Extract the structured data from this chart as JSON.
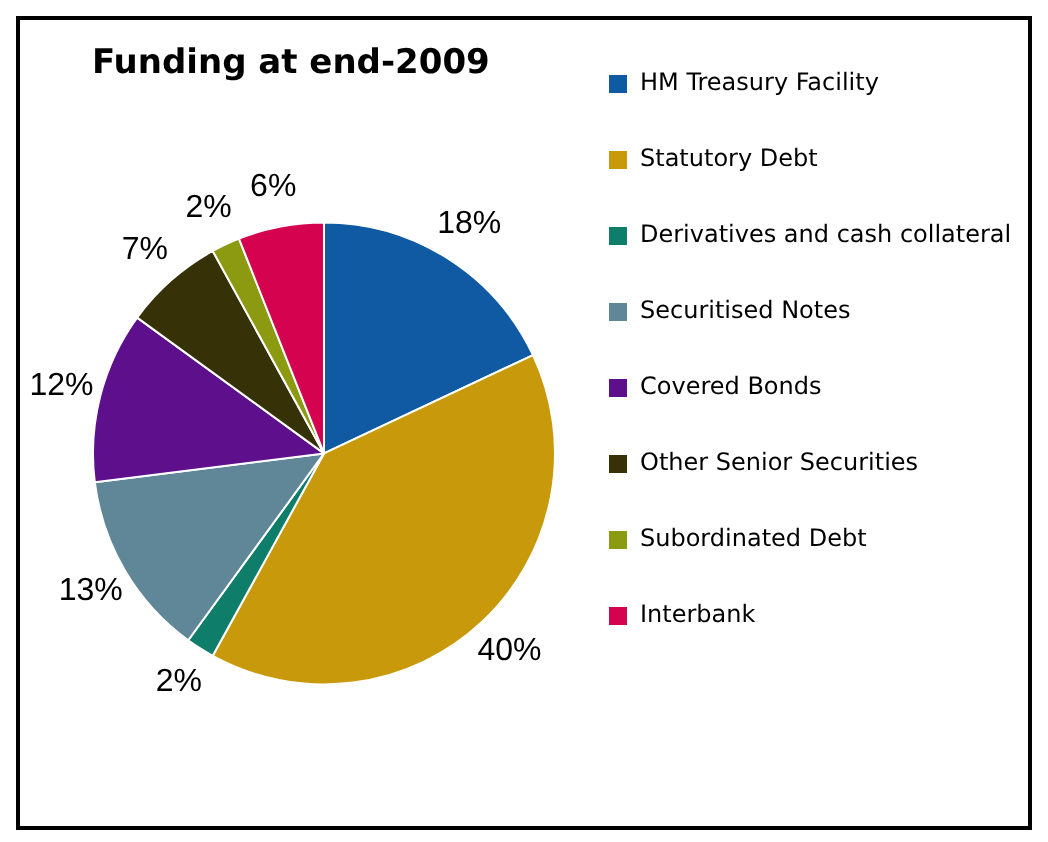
{
  "chart_data": {
    "type": "pie",
    "title": "Funding at end-2009",
    "categories": [
      "HM Treasury Facility",
      "Statutory Debt",
      "Derivatives and cash collateral",
      "Securitised Notes",
      "Covered Bonds",
      "Other Senior Securities",
      "Subordinated Debt",
      "Interbank"
    ],
    "values": [
      18,
      40,
      2,
      13,
      12,
      7,
      2,
      6
    ],
    "colors": [
      "#0f5aa3",
      "#c9990c",
      "#0e7d69",
      "#5f8798",
      "#5d0f8c",
      "#363107",
      "#8c9a12",
      "#d4024f"
    ],
    "value_labels": [
      "18%",
      "40%",
      "2%",
      "13%",
      "12%",
      "7%",
      "2%",
      "6%"
    ],
    "legend": "right"
  }
}
